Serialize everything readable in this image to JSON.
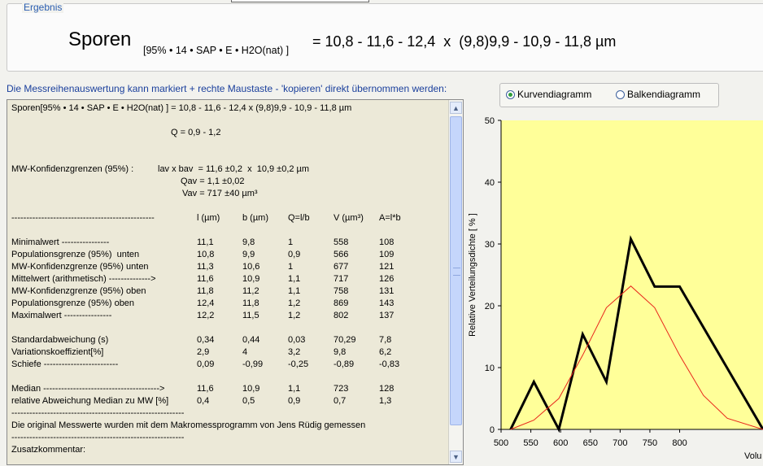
{
  "result": {
    "legend": "Ergebnis",
    "title": "Sporen",
    "conditions": "[95% • 14 • SAP • E • H2O(nat) ]",
    "formula": "= 10,8 - 11,6 - 12,4  x  (9,8)9,9 - 10,9 - 11,8 µm"
  },
  "hint": "Die Messreihenauswertung kann markiert + rechte Maustaste - 'kopieren' direkt übernommen werden:",
  "text": {
    "line1": "Sporen[95% • 14 • SAP • E • H2O(nat) ] = 10,8 - 11,6 - 12,4 x (9,8)9,9 - 10,9 - 11,8 µm",
    "q": "Q = 0,9 - 1,2",
    "mw_label": "MW-Konfidenzgrenzen (95%) :",
    "mw_lb": "lav x bav  = 11,6 ±0,2  x  10,9 ±0,2 µm",
    "mw_q": "Qav = 1,1 ±0,02",
    "mw_v": "Vav = 717 ±40 µm³",
    "divider_head": "------------------------------------------------",
    "headers": [
      "l (µm)",
      "b (µm)",
      "Q=l/b",
      "V (µm³)",
      "A=l*b"
    ],
    "rows": [
      {
        "label": "Minimalwert ----------------",
        "v": [
          "11,1",
          "9,8",
          "1",
          "558",
          "108"
        ]
      },
      {
        "label": "Populationsgrenze (95%)  unten",
        "v": [
          "10,8",
          "9,9",
          "0,9",
          "566",
          "109"
        ]
      },
      {
        "label": "MW-Konfidenzgrenze (95%) unten",
        "v": [
          "11,3",
          "10,6",
          "1",
          "677",
          "121"
        ]
      },
      {
        "label": "Mittelwert (arithmetisch) -------------->",
        "v": [
          "11,6",
          "10,9",
          "1,1",
          "717",
          "126"
        ]
      },
      {
        "label": "MW-Konfidenzgrenze (95%) oben",
        "v": [
          "11,8",
          "11,2",
          "1,1",
          "758",
          "131"
        ]
      },
      {
        "label": "Populationsgrenze (95%) oben",
        "v": [
          "12,4",
          "11,8",
          "1,2",
          "869",
          "143"
        ]
      },
      {
        "label": "Maximalwert ----------------",
        "v": [
          "12,2",
          "11,5",
          "1,2",
          "802",
          "137"
        ]
      }
    ],
    "stats": [
      {
        "label": "Standardabweichung (s)",
        "v": [
          "0,34",
          "0,44",
          "0,03",
          "70,29",
          "7,8"
        ]
      },
      {
        "label": "Variationskoeffizient[%]",
        "v": [
          "2,9",
          "4",
          "3,2",
          "9,8",
          "6,2"
        ]
      },
      {
        "label": "Schiefe -------------------------",
        "v": [
          "0,09",
          "-0,99",
          "-0,25",
          "-0,89",
          "-0,83"
        ]
      }
    ],
    "median": [
      {
        "label": "Median --------------------------------------->",
        "v": [
          "11,6",
          "10,9",
          "1,1",
          "723",
          "128"
        ]
      },
      {
        "label": "relative Abweichung Median zu MW [%]",
        "v": [
          "0,4",
          "0,5",
          "0,9",
          "0,7",
          "1,3"
        ]
      }
    ],
    "divider_long": "----------------------------------------------------------",
    "footer_note": "Die original Messwerte wurden mit dem Makromessprogramm von Jens Rüdig gemessen",
    "comment_label": "Zusatzkommentar:"
  },
  "scroll": {
    "up_icon": "▲",
    "down_icon": "▼"
  },
  "chart_options": {
    "curve_label": "Kurvendiagramm",
    "bar_label": "Balkendiagramm",
    "selected": "Kurvendiagramm"
  },
  "chart_data": {
    "type": "line",
    "ylabel": "Relative Verteilungsdichte  [ % ]",
    "xlabel": "Volu",
    "xlim": [
      500,
      940
    ],
    "ylim": [
      0,
      50
    ],
    "xticks": [
      500,
      550,
      600,
      650,
      700,
      750,
      800
    ],
    "yticks": [
      0,
      10,
      20,
      30,
      40,
      50
    ],
    "plot_bg": "#ffff99",
    "series": [
      {
        "color": "#000000",
        "points": [
          [
            516,
            0
          ],
          [
            555,
            7.7
          ],
          [
            597,
            0
          ],
          [
            637,
            15.4
          ],
          [
            677,
            7.7
          ],
          [
            718,
            30.8
          ],
          [
            758,
            23.1
          ],
          [
            800,
            23.1
          ],
          [
            940,
            0
          ]
        ]
      },
      {
        "color": "#e8251b",
        "points": [
          [
            516,
            0
          ],
          [
            555,
            1.5
          ],
          [
            597,
            5
          ],
          [
            637,
            12
          ],
          [
            677,
            19.7
          ],
          [
            718,
            23.2
          ],
          [
            758,
            19.7
          ],
          [
            800,
            12
          ],
          [
            840,
            5.5
          ],
          [
            880,
            1.8
          ],
          [
            940,
            0
          ]
        ]
      }
    ]
  }
}
